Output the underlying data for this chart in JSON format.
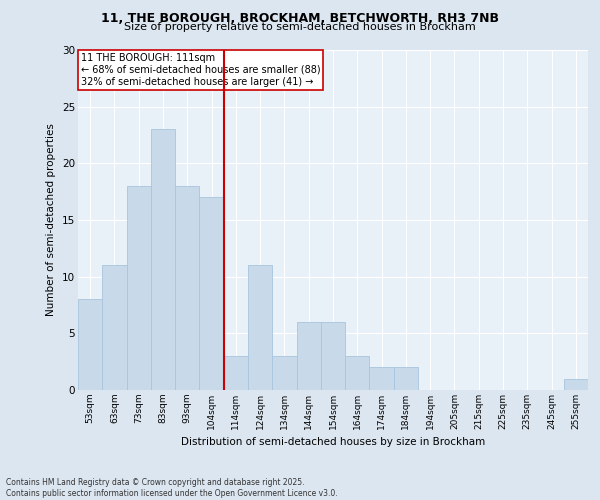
{
  "title1": "11, THE BOROUGH, BROCKHAM, BETCHWORTH, RH3 7NB",
  "title2": "Size of property relative to semi-detached houses in Brockham",
  "xlabel": "Distribution of semi-detached houses by size in Brockham",
  "ylabel": "Number of semi-detached properties",
  "bins": [
    "53sqm",
    "63sqm",
    "73sqm",
    "83sqm",
    "93sqm",
    "104sqm",
    "114sqm",
    "124sqm",
    "134sqm",
    "144sqm",
    "154sqm",
    "164sqm",
    "174sqm",
    "184sqm",
    "194sqm",
    "205sqm",
    "215sqm",
    "225sqm",
    "235sqm",
    "245sqm",
    "255sqm"
  ],
  "values": [
    8,
    11,
    18,
    23,
    18,
    17,
    3,
    11,
    3,
    6,
    6,
    3,
    2,
    2,
    0,
    0,
    0,
    0,
    0,
    0,
    1
  ],
  "bar_color": "#c8d9ea",
  "bar_edge_color": "#a8c4df",
  "vline_x_index": 5.5,
  "annotation_text": "11 THE BOROUGH: 111sqm\n← 68% of semi-detached houses are smaller (88)\n32% of semi-detached houses are larger (41) →",
  "vline_color": "#cc0000",
  "annotation_box_color": "#ffffff",
  "annotation_box_edge_color": "#cc0000",
  "footer_text": "Contains HM Land Registry data © Crown copyright and database right 2025.\nContains public sector information licensed under the Open Government Licence v3.0.",
  "ylim": [
    0,
    30
  ],
  "yticks": [
    0,
    5,
    10,
    15,
    20,
    25,
    30
  ],
  "bg_color": "#dce6f0",
  "plot_bg_color": "#e8f0f8",
  "grid_color": "#ffffff",
  "title1_fontsize": 9,
  "title2_fontsize": 8
}
